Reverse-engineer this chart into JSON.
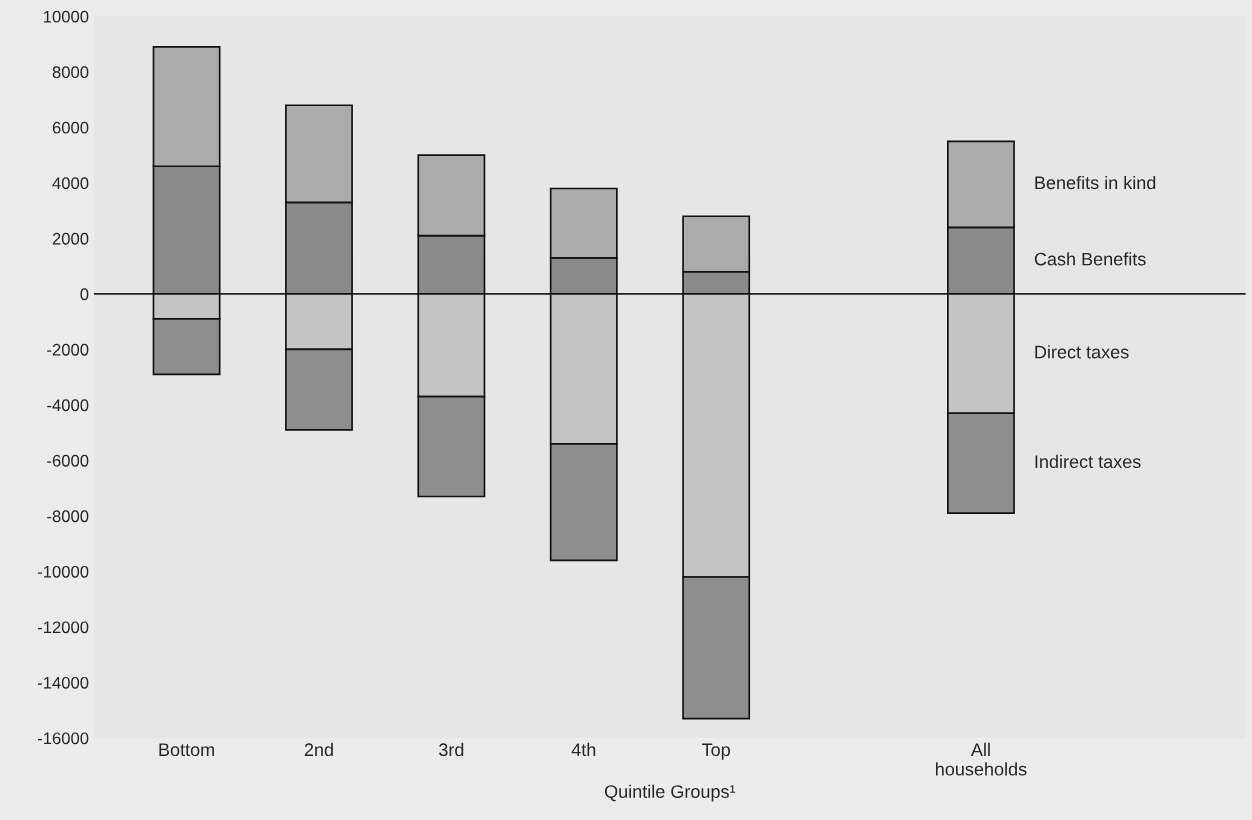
{
  "chart_data": {
    "type": "bar",
    "stacked": true,
    "xlabel": "Quintile Groups¹",
    "categories": [
      "Bottom",
      "2nd",
      "3rd",
      "4th",
      "Top",
      null,
      "All\nhouseholds"
    ],
    "series": [
      {
        "name": "Cash Benefits",
        "color": "#8a8a8a",
        "values": [
          4600,
          3300,
          2100,
          1300,
          800,
          null,
          2400
        ]
      },
      {
        "name": "Benefits in kind",
        "color": "#ababab",
        "values": [
          4300,
          3500,
          2900,
          2500,
          2000,
          null,
          3100
        ]
      },
      {
        "name": "Direct taxes",
        "color": "#c4c4c4",
        "values": [
          -900,
          -2000,
          -3700,
          -5400,
          -10200,
          null,
          -4300
        ]
      },
      {
        "name": "Indirect taxes",
        "color": "#8e8e8e",
        "values": [
          -2000,
          -2900,
          -3600,
          -4200,
          -5100,
          null,
          -3600
        ]
      }
    ],
    "ylim": [
      -16000,
      10000
    ],
    "yticks": [
      10000,
      8000,
      6000,
      4000,
      2000,
      0,
      -2000,
      -4000,
      -6000,
      -8000,
      -10000,
      -12000,
      -14000,
      -16000
    ],
    "ref_lines": [
      {
        "axis": "y",
        "value": 0,
        "color": "#222222"
      }
    ],
    "grid": false,
    "legend": "right"
  }
}
